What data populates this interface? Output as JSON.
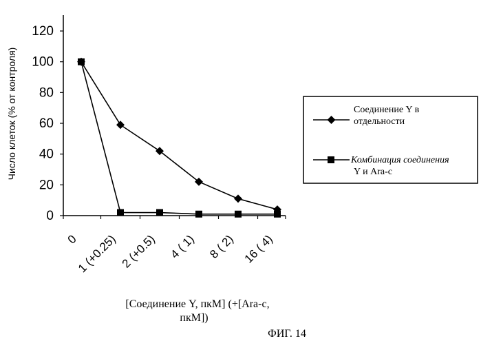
{
  "chart_data": {
    "type": "line",
    "ylabel": "Число клеток (% от контроля)",
    "xlabel_lines": [
      "[Соединение Y, пкМ] (+[Ara-c,",
      "пкМ])"
    ],
    "categories": [
      "0",
      "1 (+0.25)",
      "2 (+0.5)",
      "4 ( 1)",
      "8 ( 2)",
      "16 ( 4)"
    ],
    "y_tick_labels": [
      "0",
      "20",
      "40",
      "60",
      "80",
      "100",
      "120"
    ],
    "ylim": [
      0,
      120
    ],
    "grid": false,
    "legend_position": "right",
    "series": [
      {
        "name": "Соединение Y в отдельности",
        "marker": "diamond",
        "values": [
          100,
          59,
          42,
          22,
          11,
          4
        ]
      },
      {
        "name": "Комбинация соединения Y и Ara-c",
        "marker": "square",
        "values": [
          100,
          2,
          2,
          1,
          1,
          1
        ]
      }
    ]
  },
  "legend": {
    "series1_lines": [
      "Соединение Y в",
      "отдельности"
    ],
    "series2_lines": [
      "Комбинация соединения",
      "Y и Ara-c"
    ]
  },
  "figure_caption": "ФИГ. 14"
}
